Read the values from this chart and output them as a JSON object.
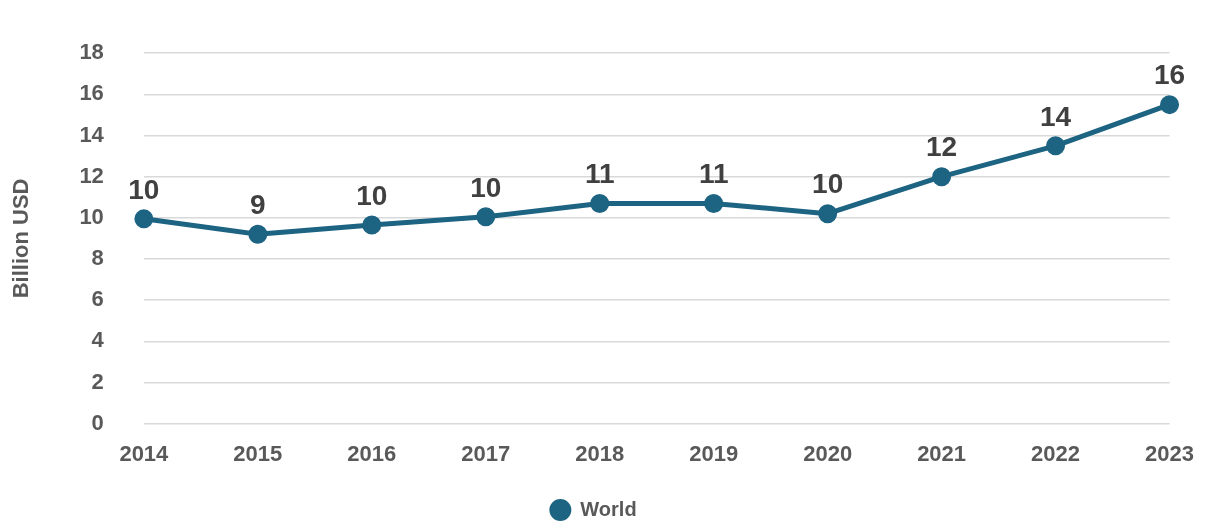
{
  "chart_data": {
    "type": "line",
    "ylabel": "Billion USD",
    "categories": [
      "2014",
      "2015",
      "2016",
      "2017",
      "2018",
      "2019",
      "2020",
      "2021",
      "2022",
      "2023"
    ],
    "series": [
      {
        "name": "World",
        "color": "#1d6382",
        "values": [
          9.95,
          9.2,
          9.65,
          10.05,
          10.7,
          10.7,
          10.2,
          12.0,
          13.5,
          15.5
        ],
        "value_labels": [
          "10",
          "9",
          "10",
          "10",
          "11",
          "11",
          "10",
          "12",
          "14",
          "16"
        ]
      }
    ],
    "ylim": [
      0,
      18
    ],
    "yticks": [
      0,
      2,
      4,
      6,
      8,
      10,
      12,
      14,
      16,
      18
    ],
    "grid": "y",
    "legend": "bottom",
    "marker": "circle",
    "line_style": "solid"
  }
}
